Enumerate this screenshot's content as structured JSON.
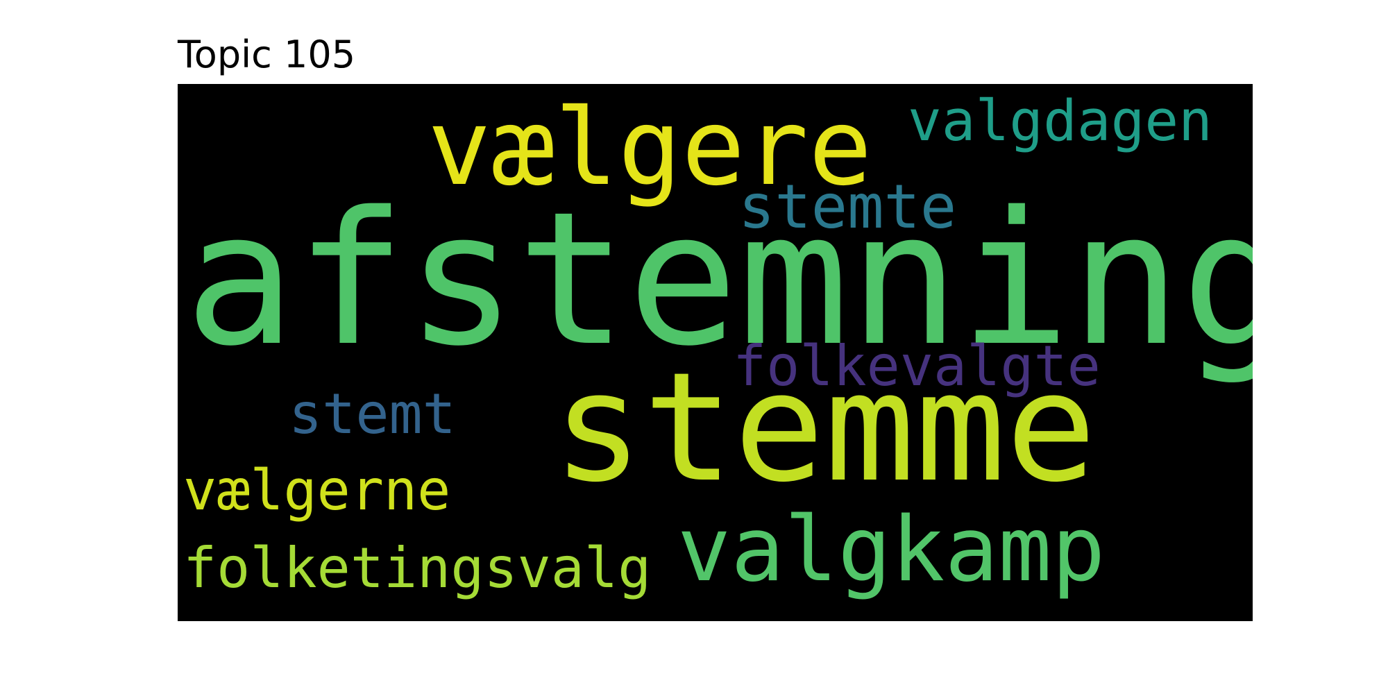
{
  "figure": {
    "title": "Topic 105",
    "background": "#000000"
  },
  "words": [
    {
      "text": "afstemning",
      "color": "#4fc469"
    },
    {
      "text": "stemme",
      "color": "#c2df22"
    },
    {
      "text": "vælgere",
      "color": "#e5e419"
    },
    {
      "text": "valgkamp",
      "color": "#52c569"
    },
    {
      "text": "valgdagen",
      "color": "#1f9e89"
    },
    {
      "text": "stemte",
      "color": "#2a788e"
    },
    {
      "text": "folkevalgte",
      "color": "#46327e"
    },
    {
      "text": "stemt",
      "color": "#33638d"
    },
    {
      "text": "vælgerne",
      "color": "#d0e11c"
    },
    {
      "text": "folketingsvalg",
      "color": "#a5db36"
    }
  ]
}
